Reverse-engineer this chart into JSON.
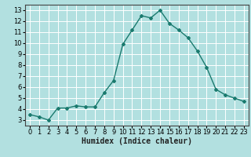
{
  "x": [
    0,
    1,
    2,
    3,
    4,
    5,
    6,
    7,
    8,
    9,
    10,
    11,
    12,
    13,
    14,
    15,
    16,
    17,
    18,
    19,
    20,
    21,
    22,
    23
  ],
  "y": [
    3.5,
    3.3,
    3.0,
    4.1,
    4.1,
    4.3,
    4.2,
    4.2,
    5.5,
    6.6,
    9.9,
    11.2,
    12.5,
    12.3,
    13.0,
    11.8,
    11.2,
    10.5,
    9.3,
    7.8,
    5.8,
    5.3,
    5.0,
    4.7
  ],
  "line_color": "#1a7a6e",
  "marker": "D",
  "marker_size": 2,
  "bg_color": "#b2e0e0",
  "grid_color": "#ffffff",
  "xlabel": "Humidex (Indice chaleur)",
  "xlim": [
    -0.5,
    23.5
  ],
  "ylim": [
    2.5,
    13.5
  ],
  "yticks": [
    3,
    4,
    5,
    6,
    7,
    8,
    9,
    10,
    11,
    12,
    13
  ],
  "xticks": [
    0,
    1,
    2,
    3,
    4,
    5,
    6,
    7,
    8,
    9,
    10,
    11,
    12,
    13,
    14,
    15,
    16,
    17,
    18,
    19,
    20,
    21,
    22,
    23
  ],
  "line_width": 1.0,
  "xlabel_fontsize": 7,
  "tick_fontsize": 6
}
